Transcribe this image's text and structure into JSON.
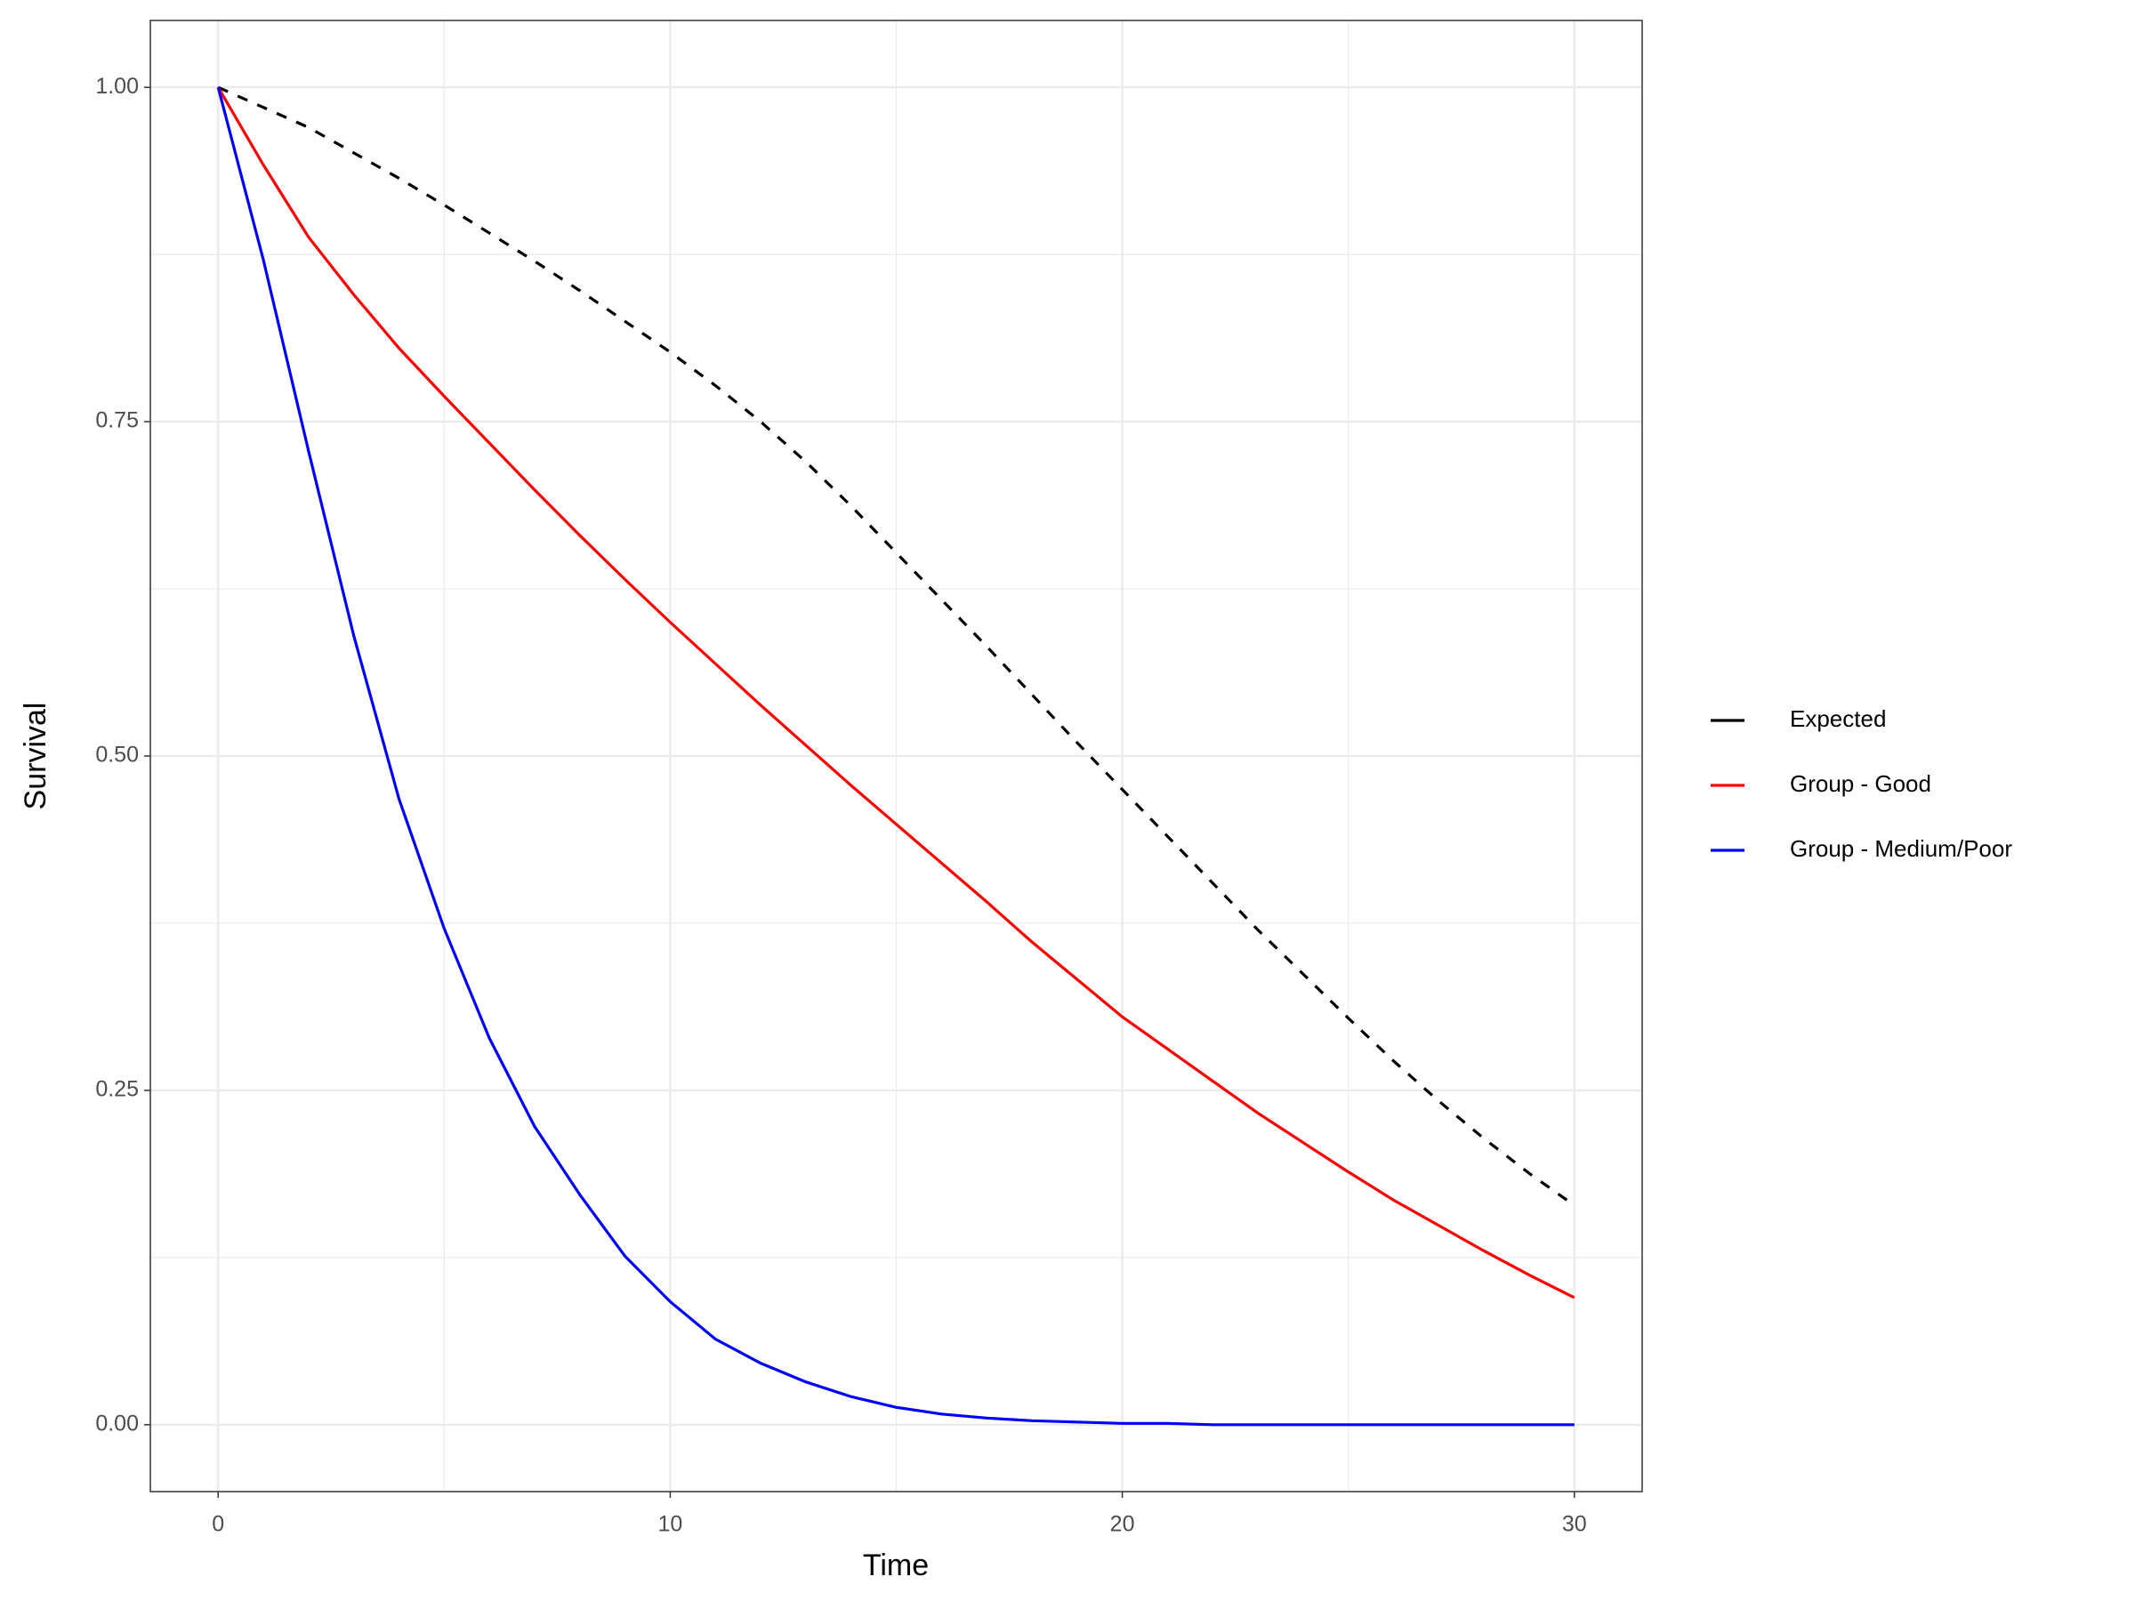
{
  "chart_data": {
    "type": "line",
    "x_label": "Time",
    "y_label": "Survival",
    "x": [
      0,
      1,
      2,
      3,
      4,
      5,
      6,
      7,
      8,
      9,
      10,
      11,
      12,
      13,
      14,
      15,
      16,
      17,
      18,
      19,
      20,
      21,
      22,
      23,
      24,
      25,
      26,
      27,
      28,
      29,
      30
    ],
    "series": [
      {
        "name": "Expected",
        "color": "#000000",
        "linetype": "dashed",
        "values": [
          1,
          0.985,
          0.97,
          0.951,
          0.932,
          0.912,
          0.891,
          0.87,
          0.848,
          0.825,
          0.802,
          0.777,
          0.75,
          0.72,
          0.687,
          0.652,
          0.617,
          0.582,
          0.546,
          0.51,
          0.475,
          0.44,
          0.405,
          0.37,
          0.337,
          0.304,
          0.272,
          0.242,
          0.214,
          0.188,
          0.164
        ]
      },
      {
        "name": "Group - Good",
        "color": "#ff0000",
        "linetype": "solid",
        "values": [
          1,
          0.942,
          0.888,
          0.845,
          0.805,
          0.769,
          0.734,
          0.699,
          0.665,
          0.632,
          0.6,
          0.569,
          0.538,
          0.508,
          0.478,
          0.449,
          0.42,
          0.391,
          0.361,
          0.333,
          0.305,
          0.281,
          0.257,
          0.233,
          0.211,
          0.189,
          0.168,
          0.149,
          0.13,
          0.112,
          0.095
        ]
      },
      {
        "name": "Group - Medium/Poor",
        "color": "#0000ff",
        "linetype": "solid",
        "values": [
          1,
          0.871,
          0.728,
          0.59,
          0.468,
          0.371,
          0.289,
          0.223,
          0.172,
          0.126,
          0.092,
          0.064,
          0.046,
          0.032,
          0.021,
          0.013,
          0.008,
          0.005,
          0.003,
          0.002,
          0.001,
          0.001,
          0,
          0,
          0,
          0,
          0,
          0,
          0,
          0,
          0
        ]
      }
    ],
    "xlim": [
      -1.5,
      31.5
    ],
    "xticks": [
      0,
      10,
      20,
      30
    ],
    "ylim": [
      -0.05,
      1.05
    ],
    "yticks": [
      {
        "value": 0,
        "label": "0.00"
      },
      {
        "value": 0.25,
        "label": "0.25"
      },
      {
        "value": 0.5,
        "label": "0.50"
      },
      {
        "value": 0.75,
        "label": "0.75"
      },
      {
        "value": 1,
        "label": "1.00"
      }
    ],
    "grid": true,
    "minor_grid": true,
    "legend_position": "right"
  }
}
